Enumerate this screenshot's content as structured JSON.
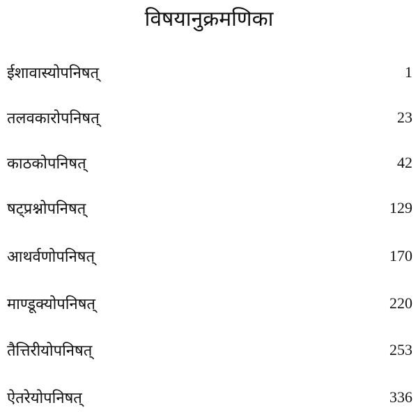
{
  "title": "विषयानुक्रमणिका",
  "entries": [
    {
      "name": "ईशावास्योपनिषत्",
      "page": "1"
    },
    {
      "name": "तलवकारोपनिषत्",
      "page": "23"
    },
    {
      "name": "काठकोपनिषत्",
      "page": "42"
    },
    {
      "name": "षट्प्रश्नोपनिषत्",
      "page": "129"
    },
    {
      "name": "आथर्वणोपनिषत्",
      "page": "170"
    },
    {
      "name": "माण्डूक्योपनिषत्",
      "page": "220"
    },
    {
      "name": "तैत्तिरीयोपनिषत्",
      "page": "253"
    },
    {
      "name": "ऐतरेयोपनिषत्",
      "page": "336"
    }
  ]
}
